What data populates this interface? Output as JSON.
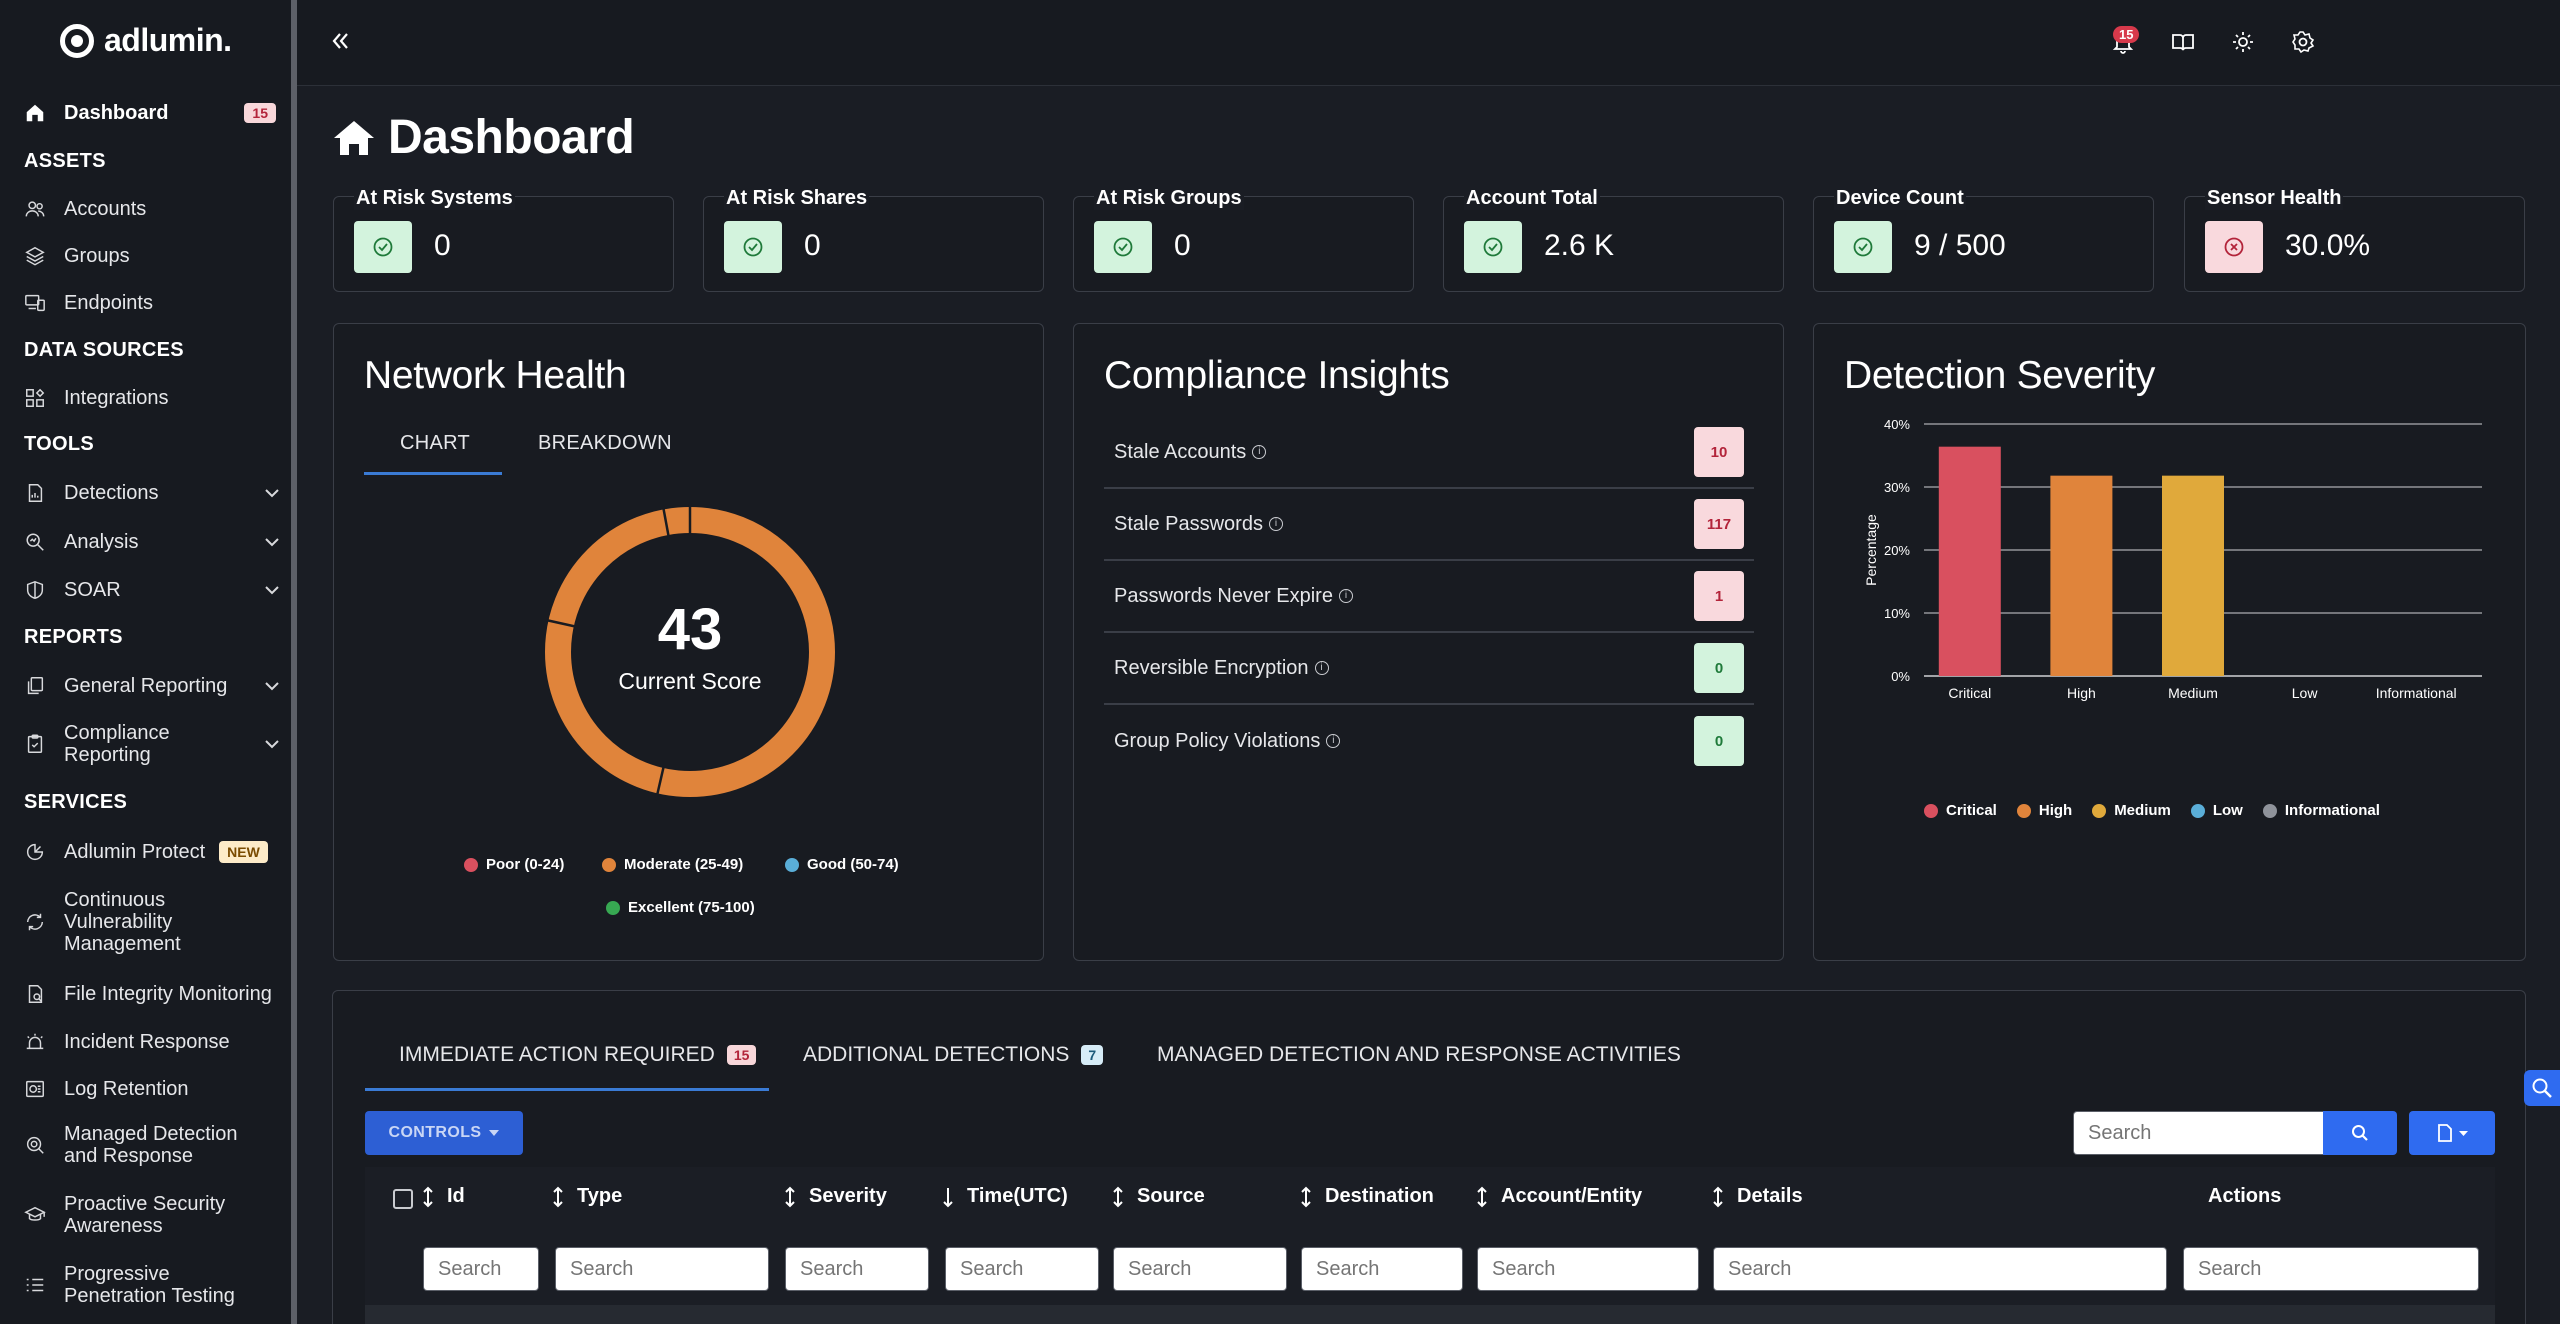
{
  "brand": {
    "name": "adlumin."
  },
  "sidebar": {
    "dashboard": {
      "label": "Dashboard",
      "badge": "15"
    },
    "sections": {
      "assets": "ASSETS",
      "data_sources": "DATA SOURCES",
      "tools": "TOOLS",
      "reports": "REPORTS",
      "services": "SERVICES"
    },
    "items": {
      "accounts": "Accounts",
      "groups": "Groups",
      "endpoints": "Endpoints",
      "integrations": "Integrations",
      "detections": "Detections",
      "analysis": "Analysis",
      "soar": "SOAR",
      "general_reporting": "General Reporting",
      "compliance_reporting": "Compliance Reporting",
      "adlumin_protect": "Adlumin Protect",
      "adlumin_protect_badge": "NEW",
      "cvm": "Continuous Vulnerability Management",
      "fim": "File Integrity Monitoring",
      "incident_response": "Incident Response",
      "log_retention": "Log Retention",
      "mdr": "Managed Detection and Response",
      "psa": "Proactive Security Awareness",
      "ppt": "Progressive Penetration Testing"
    }
  },
  "topbar": {
    "notification_count": "15"
  },
  "page": {
    "title": "Dashboard"
  },
  "stats": [
    {
      "title": "At Risk Systems",
      "value": "0",
      "status": "ok"
    },
    {
      "title": "At Risk Shares",
      "value": "0",
      "status": "ok"
    },
    {
      "title": "At Risk Groups",
      "value": "0",
      "status": "ok"
    },
    {
      "title": "Account Total",
      "value": "2.6 K",
      "status": "ok"
    },
    {
      "title": "Device Count",
      "value": "9 / 500",
      "status": "ok"
    },
    {
      "title": "Sensor Health",
      "value": "30.0%",
      "status": "bad"
    }
  ],
  "network_health": {
    "title": "Network Health",
    "tabs": [
      "CHART",
      "BREAKDOWN"
    ],
    "score": "43",
    "score_label": "Current Score",
    "legend": [
      {
        "label": "Poor (0-24)",
        "color": "#d9505f"
      },
      {
        "label": "Moderate (25-49)",
        "color": "#e0843b"
      },
      {
        "label": "Good (50-74)",
        "color": "#5aaed8"
      },
      {
        "label": "Excellent (75-100)",
        "color": "#37a852"
      }
    ]
  },
  "compliance": {
    "title": "Compliance Insights",
    "rows": [
      {
        "label": "Stale Accounts",
        "value": "10",
        "tone": "red"
      },
      {
        "label": "Stale Passwords",
        "value": "117",
        "tone": "red"
      },
      {
        "label": "Passwords Never Expire",
        "value": "1",
        "tone": "red"
      },
      {
        "label": "Reversible Encryption",
        "value": "0",
        "tone": "green"
      },
      {
        "label": "Group Policy Violations",
        "value": "0",
        "tone": "green"
      }
    ]
  },
  "detection_severity": {
    "title": "Detection Severity"
  },
  "chart_data": {
    "type": "bar",
    "title": "Detection Severity",
    "categories": [
      "Critical",
      "High",
      "Medium",
      "Low",
      "Informational"
    ],
    "values": [
      36.4,
      31.8,
      31.8,
      0,
      0
    ],
    "colors": [
      "#d9505f",
      "#e0843b",
      "#e0a93b",
      "#5aaed8",
      "#8f939b"
    ],
    "ylabel": "Percentage",
    "yticks": [
      "0%",
      "10%",
      "20%",
      "30%",
      "40%"
    ],
    "ylim": [
      0,
      40
    ],
    "grid": true,
    "legend": "bottom"
  },
  "detections_panel": {
    "tabs": [
      {
        "label": "IMMEDIATE ACTION REQUIRED",
        "badge": "15"
      },
      {
        "label": "ADDITIONAL DETECTIONS",
        "badge": "7"
      },
      {
        "label": "MANAGED DETECTION AND RESPONSE ACTIVITIES"
      }
    ],
    "controls_label": "CONTROLS",
    "search_placeholder": "Search",
    "columns": [
      "Id",
      "Type",
      "Severity",
      "Time(UTC)",
      "Source",
      "Destination",
      "Account/Entity",
      "Details",
      "Actions"
    ],
    "column_search_placeholder": "Search"
  }
}
